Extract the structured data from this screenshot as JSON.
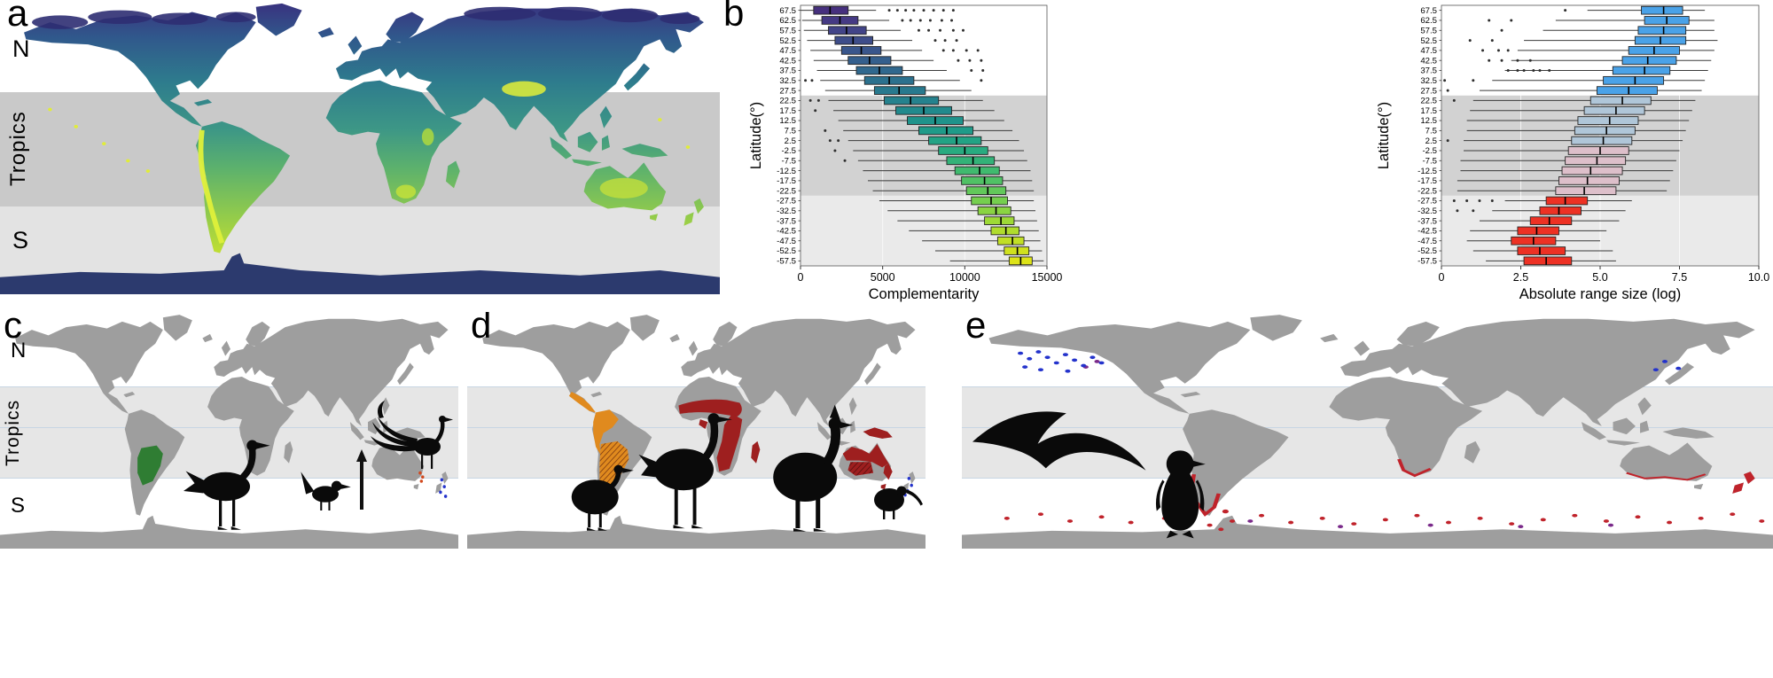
{
  "figure": {
    "panel_labels": {
      "a": "a",
      "b": "b",
      "c": "c",
      "d": "d",
      "e": "e"
    },
    "band_labels": {
      "north": "N",
      "tropics": "Tropics",
      "south": "S"
    }
  },
  "colors": {
    "band_gray_dark": "#c9c9c9",
    "band_gray_light": "#e3e3e3",
    "band_tropics_bottom": "#e6e6e6",
    "tropic_line_blue": "#c8d6e4",
    "land_gray": "#9e9e9e",
    "chart_band_tropics": "#d2d2d2",
    "chart_band_south": "#eaeaea",
    "antarctica_dark": "#2c3a6e",
    "range_green": "#2f7d33",
    "range_orange": "#e08a1e",
    "range_orange_hatch_line": "#7e3b10",
    "range_dark_red": "#9e1f1f",
    "range_dark_red_hatch_line": "#5a0f0f",
    "range_red": "#c0232b",
    "dots_blue": "#2433cc",
    "dots_purple": "#7a2a8a",
    "dots_orange_red": "#d2491e",
    "silhouette_black": "#0a0a0a",
    "viridis_gradient": [
      [
        "0",
        "#3a2f7e"
      ],
      [
        "0.13",
        "#30598c"
      ],
      [
        "0.28",
        "#2e7c8d"
      ],
      [
        "0.44",
        "#3d9786"
      ],
      [
        "0.57",
        "#5cb16d"
      ],
      [
        "0.72",
        "#8dc94e"
      ],
      [
        "0.86",
        "#c0de32"
      ],
      [
        "1",
        "#dcea2c"
      ]
    ]
  },
  "icons": [
    "bustard-silhouette",
    "scrub-bird-silhouette",
    "lyrebird-silhouette",
    "arrow-up-icon",
    "tinamou-silhouette",
    "rhea-silhouette",
    "cassowary-silhouette",
    "kiwi-silhouette",
    "albatross-silhouette",
    "penguin-silhouette"
  ],
  "chart_data": [
    {
      "type": "boxplot",
      "orientation": "horizontal",
      "xlabel": "Complementarity",
      "ylabel": "Latitude(°)",
      "xlim": [
        0,
        15000
      ],
      "xticks": [
        0,
        5000,
        10000,
        15000
      ],
      "xtick_labels": [
        "0",
        "5000",
        "10000",
        "15000"
      ],
      "categories": [
        "67.5",
        "62.5",
        "57.5",
        "52.5",
        "47.5",
        "42.5",
        "37.5",
        "32.5",
        "27.5",
        "22.5",
        "17.5",
        "12.5",
        "7.5",
        "2.5",
        "-2.5",
        "-7.5",
        "-12.5",
        "-17.5",
        "-22.5",
        "-27.5",
        "-32.5",
        "-37.5",
        "-42.5",
        "-47.5",
        "-52.5",
        "-57.5"
      ],
      "region_spans": {
        "north": [
          "67.5",
          "27.5"
        ],
        "tropics": [
          "22.5",
          "-22.5"
        ],
        "south": [
          "-27.5",
          "-57.5"
        ]
      },
      "band_rows": {
        "tropics": [
          9,
          18
        ],
        "south": [
          19,
          25
        ]
      },
      "boxes": [
        [
          0,
          800,
          1800,
          2900,
          4600
        ],
        [
          100,
          1300,
          2400,
          3500,
          5400
        ],
        [
          200,
          1700,
          2800,
          4000,
          6100
        ],
        [
          400,
          2100,
          3200,
          4400,
          6800
        ],
        [
          600,
          2500,
          3700,
          4900,
          7400
        ],
        [
          800,
          2900,
          4200,
          5500,
          8100
        ],
        [
          1000,
          3400,
          4800,
          6200,
          8900
        ],
        [
          1200,
          3900,
          5400,
          6900,
          9700
        ],
        [
          1500,
          4500,
          6000,
          7600,
          10400
        ],
        [
          1700,
          5100,
          6700,
          8400,
          11100
        ],
        [
          2000,
          5800,
          7500,
          9200,
          11800
        ],
        [
          2300,
          6500,
          8200,
          9900,
          12400
        ],
        [
          2600,
          7200,
          8900,
          10500,
          12900
        ],
        [
          2900,
          7800,
          9500,
          11000,
          13300
        ],
        [
          3200,
          8400,
          10000,
          11400,
          13600
        ],
        [
          3500,
          8900,
          10500,
          11800,
          13800
        ],
        [
          3800,
          9400,
          10900,
          12100,
          14000
        ],
        [
          4100,
          9800,
          11200,
          12300,
          14100
        ],
        [
          4400,
          10100,
          11400,
          12500,
          14200
        ],
        [
          4800,
          10400,
          11600,
          12600,
          14200
        ],
        [
          5300,
          10800,
          11900,
          12800,
          14300
        ],
        [
          5900,
          11200,
          12200,
          13000,
          14400
        ],
        [
          6600,
          11600,
          12500,
          13300,
          14500
        ],
        [
          7400,
          12000,
          12900,
          13600,
          14600
        ],
        [
          8200,
          12400,
          13200,
          13900,
          14700
        ],
        [
          9100,
          12700,
          13400,
          14100,
          14800
        ]
      ],
      "outliers": [
        [
          5400,
          5900,
          6400,
          6900,
          7500,
          8100,
          8700,
          9300
        ],
        [
          6200,
          6700,
          7300,
          7900,
          8600,
          9200
        ],
        [
          7200,
          7800,
          8500,
          9300,
          9900
        ],
        [
          8200,
          8800,
          9500
        ],
        [
          8700,
          9300,
          10100,
          10800
        ],
        [
          9600,
          10300,
          11000
        ],
        [
          10400,
          11100
        ],
        [
          300,
          700,
          11000
        ],
        [],
        [
          600,
          1100
        ],
        [
          900
        ],
        [],
        [
          1500
        ],
        [
          1800,
          2300
        ],
        [
          2100
        ],
        [
          2700
        ],
        [],
        [],
        [],
        [],
        [],
        [],
        [],
        [],
        [],
        []
      ],
      "box_colors": [
        "#46307e",
        "#453a84",
        "#424488",
        "#3e4d8a",
        "#39568c",
        "#345f8d",
        "#30688e",
        "#2c718e",
        "#28798e",
        "#25828e",
        "#218a8d",
        "#1f938b",
        "#1f9b89",
        "#22a385",
        "#28ab80",
        "#33b278",
        "#40ba6f",
        "#50c165",
        "#62c85a",
        "#75cf4e",
        "#8ad442",
        "#9ed936",
        "#b0dc2d",
        "#c1df25",
        "#d0e11e",
        "#dde318"
      ]
    },
    {
      "type": "boxplot",
      "orientation": "horizontal",
      "xlabel": "Absolute range size (log)",
      "ylabel": "Latitude(°)",
      "xlim": [
        0,
        10
      ],
      "xticks": [
        0,
        2.5,
        5,
        7.5,
        10
      ],
      "xtick_labels": [
        "0",
        "2.5",
        "5.0",
        "7.5",
        "10.0"
      ],
      "categories": [
        "67.5",
        "62.5",
        "57.5",
        "52.5",
        "47.5",
        "42.5",
        "37.5",
        "32.5",
        "27.5",
        "22.5",
        "17.5",
        "12.5",
        "7.5",
        "2.5",
        "-2.5",
        "-7.5",
        "-12.5",
        "-17.5",
        "-22.5",
        "-27.5",
        "-32.5",
        "-37.5",
        "-42.5",
        "-47.5",
        "-52.5",
        "-57.5"
      ],
      "region_spans": {
        "north": [
          "67.5",
          "27.5"
        ],
        "tropics": [
          "22.5",
          "-22.5"
        ],
        "south": [
          "-27.5",
          "-57.5"
        ]
      },
      "band_rows": {
        "tropics": [
          9,
          18
        ],
        "south": [
          19,
          25
        ]
      },
      "boxes": [
        [
          4.6,
          6.3,
          7.0,
          7.6,
          8.3
        ],
        [
          3.6,
          6.4,
          7.1,
          7.8,
          8.6
        ],
        [
          3.2,
          6.2,
          7.0,
          7.7,
          8.6
        ],
        [
          2.6,
          6.1,
          6.9,
          7.7,
          8.7
        ],
        [
          2.4,
          5.9,
          6.7,
          7.5,
          8.6
        ],
        [
          2.2,
          5.7,
          6.5,
          7.4,
          8.5
        ],
        [
          2.0,
          5.4,
          6.4,
          7.2,
          8.4
        ],
        [
          1.6,
          5.1,
          6.1,
          7.0,
          8.3
        ],
        [
          1.2,
          4.9,
          5.9,
          6.8,
          8.2
        ],
        [
          1.0,
          4.7,
          5.7,
          6.6,
          8.0
        ],
        [
          0.9,
          4.5,
          5.5,
          6.4,
          7.9
        ],
        [
          0.8,
          4.3,
          5.3,
          6.2,
          7.8
        ],
        [
          0.8,
          4.2,
          5.2,
          6.1,
          7.7
        ],
        [
          0.7,
          4.1,
          5.1,
          6.0,
          7.6
        ],
        [
          0.7,
          4.0,
          5.0,
          5.9,
          7.5
        ],
        [
          0.6,
          3.9,
          4.9,
          5.8,
          7.4
        ],
        [
          0.6,
          3.8,
          4.7,
          5.7,
          7.3
        ],
        [
          0.5,
          3.7,
          4.6,
          5.6,
          7.2
        ],
        [
          0.5,
          3.6,
          4.5,
          5.5,
          7.1
        ],
        [
          2.0,
          3.3,
          3.9,
          4.6,
          6.0
        ],
        [
          1.6,
          3.1,
          3.7,
          4.4,
          5.8
        ],
        [
          1.2,
          2.8,
          3.4,
          4.1,
          5.6
        ],
        [
          0.9,
          2.4,
          3.0,
          3.7,
          5.2
        ],
        [
          0.8,
          2.2,
          2.9,
          3.6,
          5.0
        ],
        [
          1.0,
          2.4,
          3.1,
          3.9,
          5.4
        ],
        [
          1.4,
          2.6,
          3.3,
          4.1,
          5.5
        ]
      ],
      "outliers": [
        [
          3.9
        ],
        [
          1.5,
          2.2
        ],
        [
          1.9
        ],
        [
          0.9,
          1.6
        ],
        [
          1.3,
          1.8,
          2.1
        ],
        [
          1.5,
          1.9,
          2.4,
          2.8
        ],
        [
          2.1,
          2.4,
          2.6,
          2.9,
          3.1,
          3.4
        ],
        [
          0.1,
          1.0
        ],
        [
          0.2
        ],
        [
          0.4
        ],
        [],
        [],
        [],
        [
          0.2
        ],
        [],
        [],
        [],
        [],
        [],
        [
          0.4,
          0.8,
          1.2,
          1.6
        ],
        [
          0.5,
          1.0
        ],
        [],
        [],
        [],
        [],
        []
      ],
      "box_colors": [
        "#4aa2e8",
        "#4aa2e8",
        "#4aa2e8",
        "#4aa2e8",
        "#4aa2e8",
        "#4aa2e8",
        "#4aa2e8",
        "#4aa2e8",
        "#4aa2e8",
        "#b0c6d8",
        "#b0c6d8",
        "#b0c6d8",
        "#b0c6d8",
        "#b0c6d8",
        "#ddbfca",
        "#ddbfca",
        "#ddbfca",
        "#ddbfca",
        "#ddbfca",
        "#ed3124",
        "#ed3124",
        "#ed3124",
        "#ed3124",
        "#ed3124",
        "#ed3124",
        "#ed3124"
      ]
    }
  ]
}
